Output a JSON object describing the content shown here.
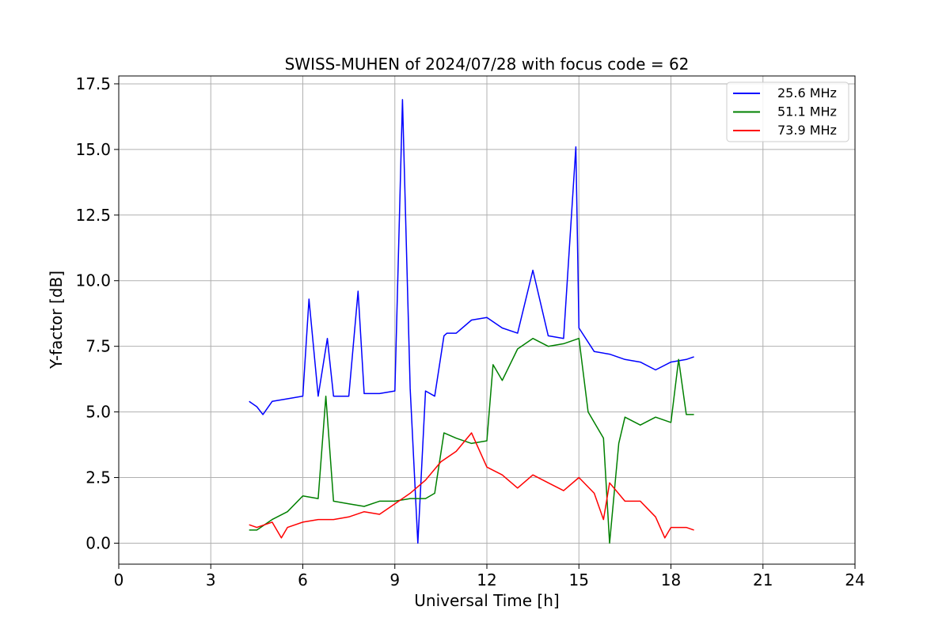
{
  "chart_data": {
    "type": "line",
    "title": "SWISS-MUHEN of 2024/07/28 with focus code = 62",
    "xlabel": "Universal Time [h]",
    "ylabel": "Y-factor [dB]",
    "xlim": [
      0,
      24
    ],
    "ylim": [
      -0.8,
      17.8
    ],
    "xticks": [
      0,
      3,
      6,
      9,
      12,
      15,
      18,
      21,
      24
    ],
    "xtick_labels": [
      "0",
      "3",
      "6",
      "9",
      "12",
      "15",
      "18",
      "21",
      "24"
    ],
    "yticks": [
      0,
      2.5,
      5,
      7.5,
      10,
      12.5,
      15,
      17.5
    ],
    "ytick_labels": [
      "0.0",
      "2.5",
      "5.0",
      "7.5",
      "10.0",
      "12.5",
      "15.0",
      "17.5"
    ],
    "grid": true,
    "legend_position": "top-right",
    "series": [
      {
        "name": "25.6 MHz",
        "color": "#0000ff",
        "x": [
          4.25,
          4.5,
          4.7,
          5.0,
          5.5,
          6.0,
          6.2,
          6.5,
          6.8,
          7.0,
          7.5,
          7.8,
          8.0,
          8.5,
          9.0,
          9.25,
          9.5,
          9.75,
          10.0,
          10.3,
          10.6,
          10.7,
          11.0,
          11.5,
          12.0,
          12.5,
          13.0,
          13.5,
          14.0,
          14.5,
          14.9,
          15.0,
          15.5,
          16.0,
          16.5,
          17.0,
          17.5,
          18.0,
          18.5,
          18.75
        ],
        "y": [
          5.4,
          5.2,
          4.9,
          5.4,
          5.5,
          5.6,
          9.3,
          5.6,
          7.8,
          5.6,
          5.6,
          9.6,
          5.7,
          5.7,
          5.8,
          16.9,
          5.9,
          0.0,
          5.8,
          5.6,
          7.9,
          8.0,
          8.0,
          8.5,
          8.6,
          8.2,
          8.0,
          10.4,
          7.9,
          7.8,
          15.1,
          8.2,
          7.3,
          7.2,
          7.0,
          6.9,
          6.6,
          6.9,
          7.0,
          7.1
        ]
      },
      {
        "name": "51.1 MHz",
        "color": "#008000",
        "x": [
          4.25,
          4.5,
          5.0,
          5.5,
          6.0,
          6.5,
          6.75,
          7.0,
          7.5,
          8.0,
          8.5,
          9.0,
          9.5,
          10.0,
          10.3,
          10.6,
          11.0,
          11.5,
          12.0,
          12.2,
          12.5,
          13.0,
          13.5,
          14.0,
          14.5,
          15.0,
          15.3,
          15.8,
          16.0,
          16.3,
          16.5,
          17.0,
          17.5,
          18.0,
          18.25,
          18.5,
          18.75
        ],
        "y": [
          0.5,
          0.5,
          0.9,
          1.2,
          1.8,
          1.7,
          5.6,
          1.6,
          1.5,
          1.4,
          1.6,
          1.6,
          1.7,
          1.7,
          1.9,
          4.2,
          4.0,
          3.8,
          3.9,
          6.8,
          6.2,
          7.4,
          7.8,
          7.5,
          7.6,
          7.8,
          5.0,
          4.0,
          0.0,
          3.8,
          4.8,
          4.5,
          4.8,
          4.6,
          7.0,
          4.9,
          4.9
        ]
      },
      {
        "name": "73.9 MHz",
        "color": "#ff0000",
        "x": [
          4.25,
          4.5,
          5.0,
          5.3,
          5.5,
          6.0,
          6.5,
          7.0,
          7.5,
          8.0,
          8.5,
          9.0,
          9.5,
          10.0,
          10.5,
          11.0,
          11.5,
          12.0,
          12.5,
          13.0,
          13.5,
          14.0,
          14.5,
          15.0,
          15.5,
          15.8,
          16.0,
          16.5,
          17.0,
          17.5,
          17.8,
          18.0,
          18.5,
          18.75
        ],
        "y": [
          0.7,
          0.6,
          0.8,
          0.2,
          0.6,
          0.8,
          0.9,
          0.9,
          1.0,
          1.2,
          1.1,
          1.5,
          1.9,
          2.4,
          3.1,
          3.5,
          4.2,
          2.9,
          2.6,
          2.1,
          2.6,
          2.3,
          2.0,
          2.5,
          1.9,
          0.9,
          2.3,
          1.6,
          1.6,
          1.0,
          0.2,
          0.6,
          0.6,
          0.5
        ]
      }
    ]
  }
}
